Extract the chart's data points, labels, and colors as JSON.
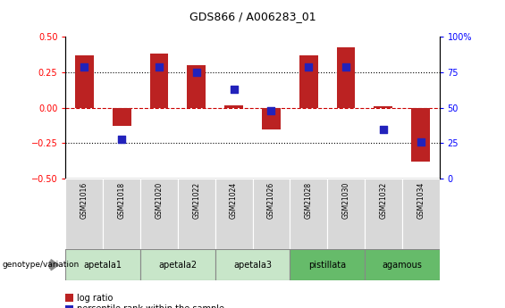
{
  "title": "GDS866 / A006283_01",
  "samples": [
    "GSM21016",
    "GSM21018",
    "GSM21020",
    "GSM21022",
    "GSM21024",
    "GSM21026",
    "GSM21028",
    "GSM21030",
    "GSM21032",
    "GSM21034"
  ],
  "log_ratio": [
    0.37,
    -0.13,
    0.38,
    0.3,
    0.02,
    -0.15,
    0.37,
    0.43,
    0.01,
    -0.38
  ],
  "percentile_display": [
    79,
    28,
    79,
    75,
    63,
    48,
    79,
    79,
    35,
    26
  ],
  "groups": [
    {
      "label": "apetala1",
      "samples": [
        0,
        1
      ],
      "color": "#c8e6c9"
    },
    {
      "label": "apetala2",
      "samples": [
        2,
        3
      ],
      "color": "#c8e6c9"
    },
    {
      "label": "apetala3",
      "samples": [
        4,
        5
      ],
      "color": "#c8e6c9"
    },
    {
      "label": "pistillata",
      "samples": [
        6,
        7
      ],
      "color": "#66bb6a"
    },
    {
      "label": "agamous",
      "samples": [
        8,
        9
      ],
      "color": "#66bb6a"
    }
  ],
  "ylim": [
    -0.5,
    0.5
  ],
  "yticks_left": [
    -0.5,
    -0.25,
    0.0,
    0.25,
    0.5
  ],
  "yticks_right": [
    0,
    25,
    50,
    75,
    100
  ],
  "bar_color": "#bb2222",
  "dot_color": "#2222bb",
  "hline_color": "#cc0000",
  "bar_width": 0.5,
  "dot_size": 30,
  "title_fontsize": 9,
  "tick_fontsize": 7,
  "label_fontsize": 7.5
}
